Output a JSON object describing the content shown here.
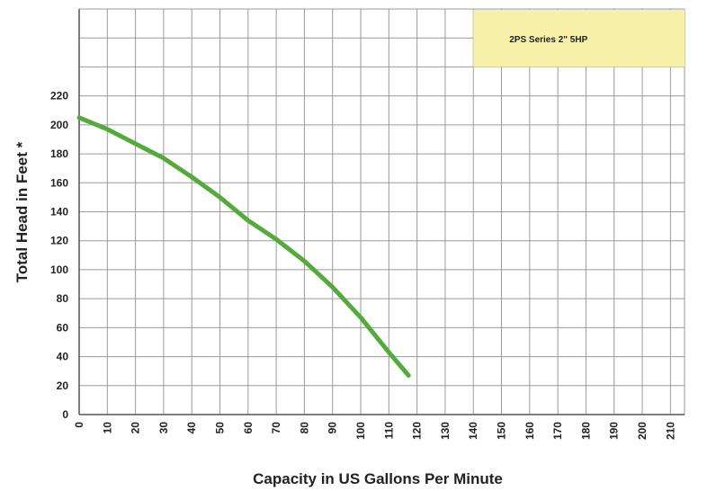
{
  "chart_data": {
    "type": "line",
    "title": "",
    "xlabel": "Capacity in US Gallons Per Minute",
    "ylabel": "Total Head in Feet *",
    "xlim": [
      0,
      215
    ],
    "ylim": [
      0,
      280
    ],
    "grid": true,
    "xticks": [
      0,
      10,
      20,
      30,
      40,
      50,
      60,
      70,
      80,
      90,
      100,
      110,
      120,
      130,
      140,
      150,
      160,
      170,
      180,
      190,
      200,
      210
    ],
    "yticks": [
      0,
      20,
      40,
      60,
      80,
      100,
      120,
      140,
      160,
      180,
      200,
      220
    ],
    "series": [
      {
        "name": "2PS Series 2\"   5HP",
        "color": "#55aa3c",
        "x": [
          0,
          10,
          20,
          30,
          40,
          50,
          60,
          70,
          80,
          90,
          100,
          110,
          117
        ],
        "y": [
          205,
          197,
          187,
          177,
          164,
          150,
          134,
          121,
          106,
          88,
          67,
          43,
          27
        ]
      }
    ],
    "legend": {
      "text": "2PS Series 2\"   5HP",
      "position": "top-right",
      "background": "#f7f0a8"
    }
  }
}
